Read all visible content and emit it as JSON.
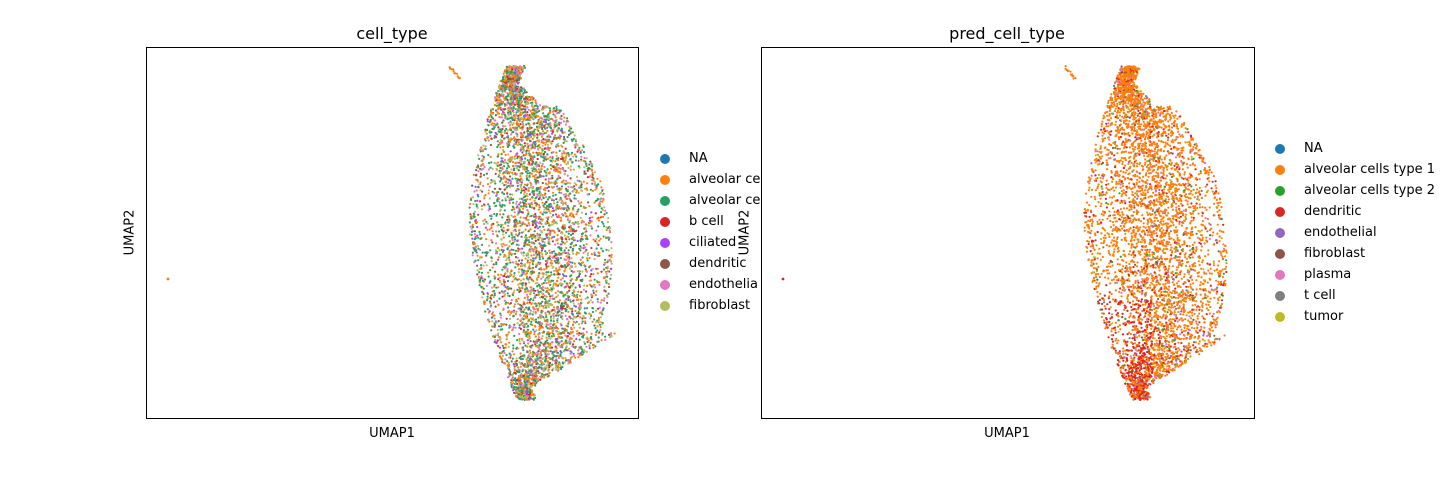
{
  "chart_data": [
    {
      "type": "scatter",
      "title": "cell_type",
      "xlabel": "UMAP1",
      "ylabel": "UMAP2",
      "grid": false,
      "legend_placement": "right outside",
      "series": [
        {
          "name": "NA",
          "color": "#1f77b4",
          "share": 0.0
        },
        {
          "name": "alveolar ce",
          "color": "#ff7f0e",
          "share": 0.26
        },
        {
          "name": "alveolar ce",
          "color": "#279e68",
          "share": 0.28
        },
        {
          "name": "b cell",
          "color": "#d62728",
          "share": 0.04
        },
        {
          "name": "ciliated",
          "color": "#aa40fc",
          "share": 0.05
        },
        {
          "name": "dendritic",
          "color": "#8c564b",
          "share": 0.07
        },
        {
          "name": "endothelia",
          "color": "#e377c2",
          "share": 0.12
        },
        {
          "name": "fibroblast",
          "color": "#b5bd61",
          "share": 0.18
        }
      ]
    },
    {
      "type": "scatter",
      "title": "pred_cell_type",
      "xlabel": "UMAP1",
      "ylabel": "UMAP2",
      "grid": false,
      "legend_placement": "right outside",
      "series": [
        {
          "name": "NA",
          "color": "#1f77b4",
          "share": 0.0
        },
        {
          "name": "alveolar cells type 1",
          "color": "#ff7f0e",
          "share": 0.72
        },
        {
          "name": "alveolar cells type 2",
          "color": "#2ca02c",
          "share": 0.03
        },
        {
          "name": "dendritic",
          "color": "#d62728",
          "share": 0.12
        },
        {
          "name": "endothelial",
          "color": "#9467bd",
          "share": 0.02
        },
        {
          "name": "fibroblast",
          "color": "#8c564b",
          "share": 0.02
        },
        {
          "name": "plasma",
          "color": "#e377c2",
          "share": 0.04
        },
        {
          "name": "t cell",
          "color": "#7f7f7f",
          "share": 0.02
        },
        {
          "name": "tumor",
          "color": "#bcbd22",
          "share": 0.03
        }
      ]
    }
  ]
}
